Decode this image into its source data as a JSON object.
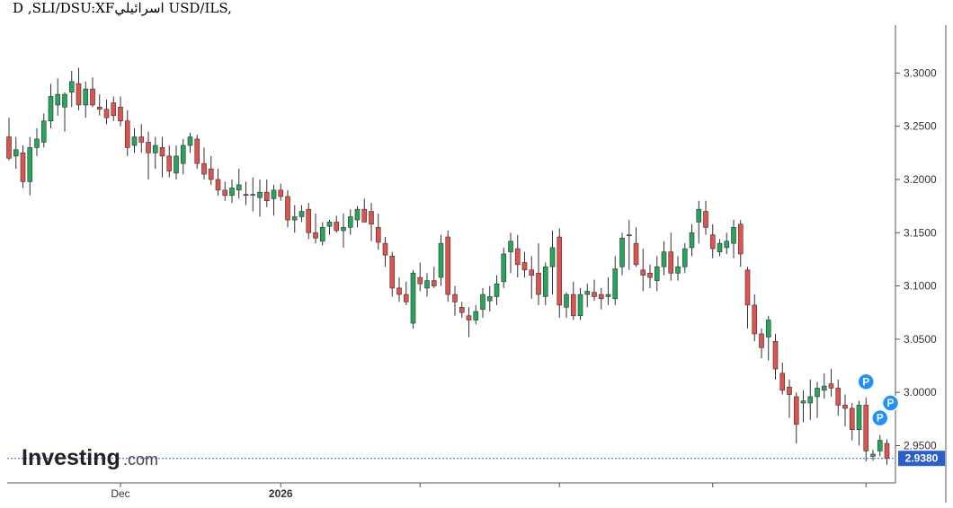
{
  "title": "D ,SLI/DSU:XFاسرائيلي USD/ILS,",
  "logo": {
    "main": "Investing",
    "domain": ".com"
  },
  "last_price": "2.9380",
  "colors": {
    "up": "#26a65b",
    "down": "#e0524d",
    "price_line": "#2a5ec9",
    "price_tag": "#2a5ec9",
    "marker": "#1e90ff"
  },
  "markers": [
    "P",
    "P",
    "P"
  ],
  "chart_data": {
    "type": "candlestick",
    "y_ticks": [
      "3.3000",
      "3.2500",
      "3.2000",
      "3.1500",
      "3.1000",
      "3.0500",
      "3.0000",
      "2.9500"
    ],
    "ylim": [
      2.915,
      3.345
    ],
    "x_labels": [
      {
        "label": "Dec",
        "at": 16,
        "bold": false
      },
      {
        "label": "2026",
        "at": 39,
        "bold": true
      },
      {
        "label": "",
        "at": 59,
        "bold": false
      },
      {
        "label": "",
        "at": 79,
        "bold": false
      },
      {
        "label": "",
        "at": 101,
        "bold": false
      },
      {
        "label": "",
        "at": 123,
        "bold": false
      }
    ],
    "candles": [
      [
        3.24,
        3.258,
        3.218,
        3.22
      ],
      [
        3.222,
        3.24,
        3.21,
        3.228
      ],
      [
        3.225,
        3.232,
        3.192,
        3.198
      ],
      [
        3.198,
        3.24,
        3.185,
        3.23
      ],
      [
        3.23,
        3.248,
        3.222,
        3.238
      ],
      [
        3.235,
        3.262,
        3.23,
        3.255
      ],
      [
        3.255,
        3.29,
        3.248,
        3.278
      ],
      [
        3.27,
        3.295,
        3.26,
        3.28
      ],
      [
        3.268,
        3.282,
        3.245,
        3.28
      ],
      [
        3.282,
        3.302,
        3.268,
        3.292
      ],
      [
        3.29,
        3.305,
        3.265,
        3.27
      ],
      [
        3.27,
        3.292,
        3.258,
        3.285
      ],
      [
        3.285,
        3.296,
        3.268,
        3.27
      ],
      [
        3.268,
        3.28,
        3.26,
        3.266
      ],
      [
        3.266,
        3.275,
        3.252,
        3.258
      ],
      [
        3.272,
        3.278,
        3.255,
        3.26
      ],
      [
        3.268,
        3.278,
        3.25,
        3.255
      ],
      [
        3.255,
        3.265,
        3.222,
        3.23
      ],
      [
        3.232,
        3.248,
        3.225,
        3.24
      ],
      [
        3.24,
        3.252,
        3.225,
        3.235
      ],
      [
        3.235,
        3.245,
        3.2,
        3.225
      ],
      [
        3.225,
        3.24,
        3.21,
        3.232
      ],
      [
        3.23,
        3.24,
        3.202,
        3.222
      ],
      [
        3.222,
        3.232,
        3.202,
        3.208
      ],
      [
        3.206,
        3.232,
        3.2,
        3.222
      ],
      [
        3.215,
        3.238,
        3.205,
        3.232
      ],
      [
        3.232,
        3.244,
        3.225,
        3.24
      ],
      [
        3.238,
        3.242,
        3.21,
        3.215
      ],
      [
        3.215,
        3.23,
        3.2,
        3.205
      ],
      [
        3.21,
        3.222,
        3.195,
        3.2
      ],
      [
        3.2,
        3.21,
        3.185,
        3.19
      ],
      [
        3.19,
        3.198,
        3.18,
        3.185
      ],
      [
        3.185,
        3.2,
        3.178,
        3.192
      ],
      [
        3.19,
        3.21,
        3.182,
        3.195
      ],
      [
        3.186,
        3.198,
        3.176,
        3.185
      ],
      [
        3.186,
        3.202,
        3.17,
        3.186
      ],
      [
        3.183,
        3.2,
        3.165,
        3.188
      ],
      [
        3.188,
        3.2,
        3.174,
        3.18
      ],
      [
        3.182,
        3.195,
        3.166,
        3.19
      ],
      [
        3.19,
        3.196,
        3.18,
        3.184
      ],
      [
        3.184,
        3.19,
        3.155,
        3.162
      ],
      [
        3.162,
        3.176,
        3.15,
        3.165
      ],
      [
        3.165,
        3.176,
        3.16,
        3.17
      ],
      [
        3.172,
        3.178,
        3.144,
        3.15
      ],
      [
        3.15,
        3.168,
        3.14,
        3.145
      ],
      [
        3.142,
        3.16,
        3.138,
        3.155
      ],
      [
        3.156,
        3.162,
        3.148,
        3.16
      ],
      [
        3.16,
        3.166,
        3.15,
        3.152
      ],
      [
        3.152,
        3.168,
        3.136,
        3.155
      ],
      [
        3.155,
        3.172,
        3.148,
        3.165
      ],
      [
        3.162,
        3.175,
        3.155,
        3.172
      ],
      [
        3.172,
        3.182,
        3.16,
        3.16
      ],
      [
        3.17,
        3.178,
        3.142,
        3.158
      ],
      [
        3.155,
        3.168,
        3.134,
        3.141
      ],
      [
        3.14,
        3.146,
        3.118,
        3.129
      ],
      [
        3.128,
        3.132,
        3.09,
        3.098
      ],
      [
        3.098,
        3.108,
        3.085,
        3.092
      ],
      [
        3.092,
        3.104,
        3.082,
        3.085
      ],
      [
        3.065,
        3.115,
        3.06,
        3.112
      ],
      [
        3.108,
        3.122,
        3.095,
        3.102
      ],
      [
        3.098,
        3.112,
        3.09,
        3.105
      ],
      [
        3.105,
        3.118,
        3.098,
        3.1
      ],
      [
        3.108,
        3.148,
        3.1,
        3.14
      ],
      [
        3.146,
        3.152,
        3.085,
        3.092
      ],
      [
        3.092,
        3.1,
        3.072,
        3.085
      ],
      [
        3.08,
        3.085,
        3.07,
        3.075
      ],
      [
        3.072,
        3.08,
        3.052,
        3.068
      ],
      [
        3.068,
        3.082,
        3.064,
        3.076
      ],
      [
        3.078,
        3.098,
        3.07,
        3.092
      ],
      [
        3.086,
        3.1,
        3.076,
        3.09
      ],
      [
        3.09,
        3.11,
        3.082,
        3.102
      ],
      [
        3.104,
        3.136,
        3.098,
        3.13
      ],
      [
        3.132,
        3.15,
        3.112,
        3.142
      ],
      [
        3.135,
        3.148,
        3.108,
        3.12
      ],
      [
        3.122,
        3.132,
        3.108,
        3.115
      ],
      [
        3.115,
        3.128,
        3.088,
        3.11
      ],
      [
        3.112,
        3.14,
        3.082,
        3.092
      ],
      [
        3.09,
        3.122,
        3.082,
        3.118
      ],
      [
        3.118,
        3.152,
        3.092,
        3.136
      ],
      [
        3.146,
        3.154,
        3.07,
        3.082
      ],
      [
        3.08,
        3.094,
        3.07,
        3.092
      ],
      [
        3.092,
        3.104,
        3.068,
        3.072
      ],
      [
        3.072,
        3.098,
        3.068,
        3.092
      ],
      [
        3.092,
        3.102,
        3.08,
        3.095
      ],
      [
        3.094,
        3.106,
        3.086,
        3.09
      ],
      [
        3.092,
        3.098,
        3.078,
        3.088
      ],
      [
        3.09,
        3.108,
        3.082,
        3.092
      ],
      [
        3.088,
        3.128,
        3.082,
        3.116
      ],
      [
        3.118,
        3.15,
        3.11,
        3.145
      ],
      [
        3.148,
        3.162,
        3.115,
        3.148
      ],
      [
        3.14,
        3.155,
        3.118,
        3.12
      ],
      [
        3.115,
        3.135,
        3.095,
        3.11
      ],
      [
        3.112,
        3.12,
        3.098,
        3.108
      ],
      [
        3.105,
        3.128,
        3.095,
        3.118
      ],
      [
        3.118,
        3.142,
        3.11,
        3.132
      ],
      [
        3.132,
        3.15,
        3.105,
        3.112
      ],
      [
        3.112,
        3.128,
        3.105,
        3.118
      ],
      [
        3.118,
        3.14,
        3.112,
        3.135
      ],
      [
        3.136,
        3.158,
        3.128,
        3.15
      ],
      [
        3.16,
        3.18,
        3.14,
        3.172
      ],
      [
        3.17,
        3.18,
        3.148,
        3.155
      ],
      [
        3.148,
        3.158,
        3.126,
        3.135
      ],
      [
        3.132,
        3.144,
        3.128,
        3.14
      ],
      [
        3.136,
        3.15,
        3.13,
        3.142
      ],
      [
        3.14,
        3.162,
        3.126,
        3.155
      ],
      [
        3.158,
        3.162,
        3.118,
        3.13
      ],
      [
        3.115,
        3.118,
        3.06,
        3.082
      ],
      [
        3.082,
        3.092,
        3.048,
        3.055
      ],
      [
        3.055,
        3.06,
        3.032,
        3.042
      ],
      [
        3.052,
        3.072,
        3.03,
        3.068
      ],
      [
        3.048,
        3.055,
        3.012,
        3.022
      ],
      [
        3.018,
        3.028,
        2.998,
        3.002
      ],
      [
        3.005,
        3.012,
        2.976,
        2.998
      ],
      [
        2.996,
        3.0,
        2.952,
        2.97
      ],
      [
        2.99,
        3.002,
        2.972,
        2.992
      ],
      [
        2.99,
        3.012,
        2.974,
        2.996
      ],
      [
        2.996,
        3.01,
        2.976,
        3.004
      ],
      [
        3.002,
        3.018,
        2.994,
        3.006
      ],
      [
        3.008,
        3.022,
        2.996,
        3.004
      ],
      [
        3.004,
        3.012,
        2.978,
        2.988
      ],
      [
        2.988,
        2.998,
        2.968,
        2.985
      ],
      [
        2.985,
        2.99,
        2.955,
        2.965
      ],
      [
        2.965,
        2.992,
        2.95,
        2.988
      ],
      [
        2.988,
        2.995,
        2.935,
        2.945
      ],
      [
        2.94,
        2.946,
        2.936,
        2.942
      ],
      [
        2.945,
        2.96,
        2.94,
        2.955
      ],
      [
        2.952,
        2.956,
        2.932,
        2.938
      ]
    ]
  }
}
